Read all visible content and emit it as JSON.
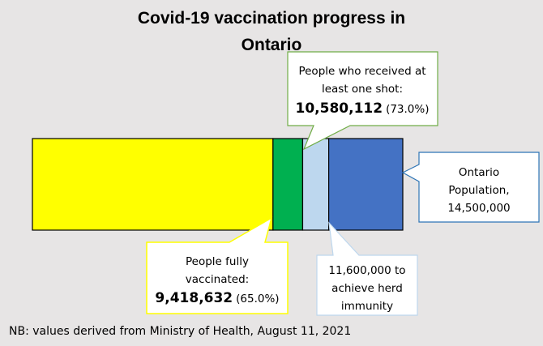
{
  "chart_data": {
    "type": "bar",
    "orientation": "horizontal-stacked",
    "title": "Covid-19 vaccination progress in Ontario",
    "title_lines": [
      "Covid-19 vaccination progress in",
      "Ontario"
    ],
    "total": 14500000,
    "segments": [
      {
        "label": "People fully vaccinated",
        "cumulative_value": 9418632,
        "percent": 65.0,
        "color": "#ffff00"
      },
      {
        "label": "People who received at least one shot",
        "cumulative_value": 10580112,
        "percent": 73.0,
        "color": "#00b050"
      },
      {
        "label": "Herd immunity target",
        "cumulative_value": 11600000,
        "color": "#bdd7ee"
      },
      {
        "label": "Ontario Population",
        "cumulative_value": 14500000,
        "color": "#4472c4"
      }
    ],
    "callouts": {
      "one_shot": {
        "lines": [
          "People who received at",
          "least one shot:"
        ],
        "value": "10,580,112",
        "pct": "(73.0%)",
        "border": "#70ad47"
      },
      "population": {
        "lines": [
          "Ontario",
          "Population,",
          "14,500,000"
        ],
        "border": "#2e75b6"
      },
      "fully": {
        "lines": [
          "People fully",
          "vaccinated:"
        ],
        "value": "9,418,632",
        "pct": "(65.0%)",
        "border": "#ffff00"
      },
      "herd": {
        "lines": [
          "11,600,000 to",
          "achieve herd",
          "immunity"
        ],
        "border": "#bdd7ee"
      }
    },
    "note": "NB: values derived from Ministry of Health, August 11, 2021"
  }
}
